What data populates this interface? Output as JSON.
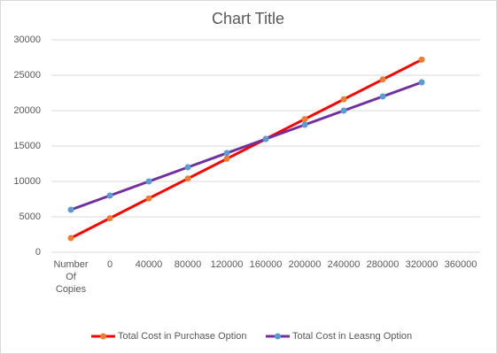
{
  "chart_data": {
    "type": "line",
    "title": "Chart Title",
    "categories": [
      "Number Of Copies",
      "0",
      "40000",
      "80000",
      "120000",
      "160000",
      "200000",
      "240000",
      "280000",
      "320000",
      "360000"
    ],
    "series": [
      {
        "name": "Total Cost in Purchase Option",
        "color": "#ff0000",
        "marker_color": "#ed7d31",
        "values": [
          2000,
          4800,
          7600,
          10400,
          13200,
          16000,
          18800,
          21600,
          24400,
          27200,
          null
        ]
      },
      {
        "name": "Total Cost in Leasng Option",
        "color": "#7030a0",
        "marker_color": "#5b9bd5",
        "values": [
          6000,
          8000,
          10000,
          12000,
          14000,
          16000,
          18000,
          20000,
          22000,
          24000,
          null
        ]
      }
    ],
    "ylim": [
      0,
      30000
    ],
    "yticks": [
      0,
      5000,
      10000,
      15000,
      20000,
      25000,
      30000
    ],
    "grid": true,
    "legend": "bottom"
  }
}
